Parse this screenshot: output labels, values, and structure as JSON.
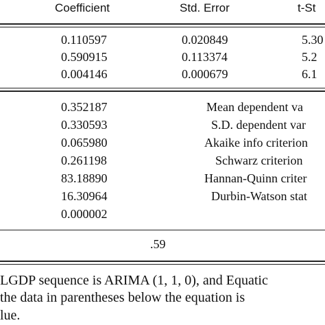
{
  "table": {
    "headers": {
      "coefficient": "Coefficient",
      "std_error": "Std. Error",
      "t_stat": "t-St"
    },
    "coef_rows": [
      {
        "coef": "0.110597",
        "se": "0.020849",
        "t": "5.30"
      },
      {
        "coef": "0.590915",
        "se": "0.113374",
        "t": "5.2"
      },
      {
        "coef": "0.004146",
        "se": "0.000679",
        "t": "6.1"
      }
    ],
    "stat_rows": [
      {
        "value": "0.352187",
        "label": "Mean dependent va"
      },
      {
        "value": "0.330593",
        "label": "S.D. dependent var"
      },
      {
        "value": "0.065980",
        "label": "Akaike info criterion"
      },
      {
        "value": "0.261198",
        "label": "Schwarz criterion"
      },
      {
        "value": "83.18890",
        "label": "Hannan-Quinn criter"
      },
      {
        "value": "16.30964",
        "label": "Durbin-Watson stat"
      },
      {
        "value": "0.000002",
        "label": ""
      }
    ],
    "bottom_value": ".59"
  },
  "caption": {
    "line1": "LGDP sequence is ARIMA (1, 1, 0), and Equatic",
    "line2": " the data in parentheses below the equation is",
    "line3": "lue."
  }
}
